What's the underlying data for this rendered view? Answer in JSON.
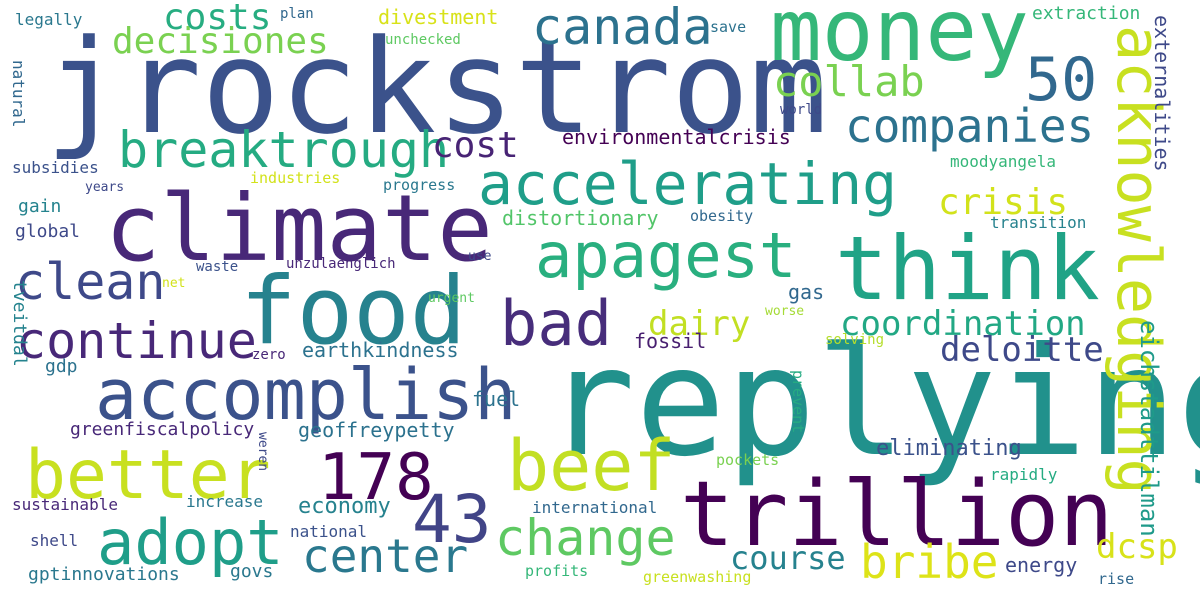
{
  "words": [
    {
      "text": "jrockstrom",
      "color": "#3b528b"
    },
    {
      "text": "replying",
      "color": "#21918c"
    },
    {
      "text": "money",
      "color": "#35b779"
    },
    {
      "text": "climate",
      "color": "#482878"
    },
    {
      "text": "trillion",
      "color": "#440154"
    },
    {
      "text": "think",
      "color": "#20a386"
    },
    {
      "text": "food",
      "color": "#26828e"
    },
    {
      "text": "accelerating",
      "color": "#1f9e89"
    },
    {
      "text": "acknowledging",
      "color": "#c8e020"
    },
    {
      "text": "accomplish",
      "color": "#3b528b"
    },
    {
      "text": "apagest",
      "color": "#29af7f"
    },
    {
      "text": "canada",
      "color": "#2c728e"
    },
    {
      "text": "bad",
      "color": "#472d7b"
    },
    {
      "text": "beef",
      "color": "#c2df23"
    },
    {
      "text": "better",
      "color": "#c8e020"
    },
    {
      "text": "adopt",
      "color": "#1f9e89"
    },
    {
      "text": "breaktrough",
      "color": "#25ab82"
    },
    {
      "text": "companies",
      "color": "#2c728e"
    },
    {
      "text": "change",
      "color": "#5ec962"
    },
    {
      "text": "178",
      "color": "#440154"
    },
    {
      "text": "43",
      "color": "#414487"
    },
    {
      "text": "50",
      "color": "#31688e"
    },
    {
      "text": "collab",
      "color": "#7ad151"
    },
    {
      "text": "continue",
      "color": "#482878"
    },
    {
      "text": "clean",
      "color": "#3e4989"
    },
    {
      "text": "center",
      "color": "#2a788e"
    },
    {
      "text": "bribe",
      "color": "#dde318"
    },
    {
      "text": "decisiones",
      "color": "#7ad151"
    },
    {
      "text": "costs",
      "color": "#27ad81"
    },
    {
      "text": "cost",
      "color": "#482475"
    },
    {
      "text": "coordination",
      "color": "#22a884"
    },
    {
      "text": "deloitte",
      "color": "#3e4989"
    },
    {
      "text": "crisis",
      "color": "#d2e21b"
    },
    {
      "text": "dairy",
      "color": "#c2df23"
    },
    {
      "text": "course",
      "color": "#26828e"
    },
    {
      "text": "dcsp",
      "color": "#d8e219"
    },
    {
      "text": "eichstadttilman",
      "color": "#1f9a8a"
    },
    {
      "text": "earthkindness",
      "color": "#2c728e"
    },
    {
      "text": "economy",
      "color": "#26828e"
    },
    {
      "text": "eliminating",
      "color": "#3b528b"
    },
    {
      "text": "divestment",
      "color": "#d8e219"
    },
    {
      "text": "distortionary",
      "color": "#52c569"
    },
    {
      "text": "environmentalcrisis",
      "color": "#440154"
    },
    {
      "text": "geoffreypetty",
      "color": "#2c728e"
    },
    {
      "text": "externalities",
      "color": "#3e4989"
    },
    {
      "text": "extraction",
      "color": "#35b779"
    },
    {
      "text": "energy",
      "color": "#3e4989"
    },
    {
      "text": "fossil",
      "color": "#481f70"
    },
    {
      "text": "fuel",
      "color": "#2c728e"
    },
    {
      "text": "gas",
      "color": "#31688e"
    },
    {
      "text": "greenfiscalpolicy",
      "color": "#482878"
    },
    {
      "text": "gptinnovations",
      "color": "#2a788e"
    },
    {
      "text": "govs",
      "color": "#2a788e"
    },
    {
      "text": "gdp",
      "color": "#2c728e"
    },
    {
      "text": "gain",
      "color": "#25838e"
    },
    {
      "text": "global",
      "color": "#3e4989"
    },
    {
      "text": "sustainable",
      "color": "#482878"
    },
    {
      "text": "shell",
      "color": "#3e4989"
    },
    {
      "text": "international",
      "color": "#31688e"
    },
    {
      "text": "national",
      "color": "#3b528b"
    },
    {
      "text": "increase",
      "color": "#2a788e"
    },
    {
      "text": "profits",
      "color": "#35b779"
    },
    {
      "text": "greenwashing",
      "color": "#c8e020"
    },
    {
      "text": "rise",
      "color": "#31688e"
    },
    {
      "text": "rapidly",
      "color": "#25ab82"
    },
    {
      "text": "pockets",
      "color": "#7ad151"
    },
    {
      "text": "prevent",
      "color": "#25ab82"
    },
    {
      "text": "weren",
      "color": "#3e4989"
    },
    {
      "text": "solving",
      "color": "#b5de2b"
    },
    {
      "text": "worse",
      "color": "#a5db36"
    },
    {
      "text": "zero",
      "color": "#482878"
    },
    {
      "text": "urgent",
      "color": "#5ec962"
    },
    {
      "text": "waste",
      "color": "#3b528b"
    },
    {
      "text": "unzulaenglich",
      "color": "#482878"
    },
    {
      "text": "use",
      "color": "#3e4989"
    },
    {
      "text": "net",
      "color": "#d2e21b"
    },
    {
      "text": "obesity",
      "color": "#31688e"
    },
    {
      "text": "transition",
      "color": "#26828e"
    },
    {
      "text": "moodyangela",
      "color": "#35b779"
    },
    {
      "text": "industries",
      "color": "#d2e21b"
    },
    {
      "text": "progress",
      "color": "#2a788e"
    },
    {
      "text": "years",
      "color": "#3e4989"
    },
    {
      "text": "subsidies",
      "color": "#3b528b"
    },
    {
      "text": "natural",
      "color": "#31688e"
    },
    {
      "text": "legally",
      "color": "#2a788e"
    },
    {
      "text": "plan",
      "color": "#31688e"
    },
    {
      "text": "save",
      "color": "#2c728e"
    },
    {
      "text": "unchecked",
      "color": "#5ec962"
    },
    {
      "text": "world",
      "color": "#3e4989"
    },
    {
      "text": "tveitdal",
      "color": "#25838e"
    }
  ]
}
